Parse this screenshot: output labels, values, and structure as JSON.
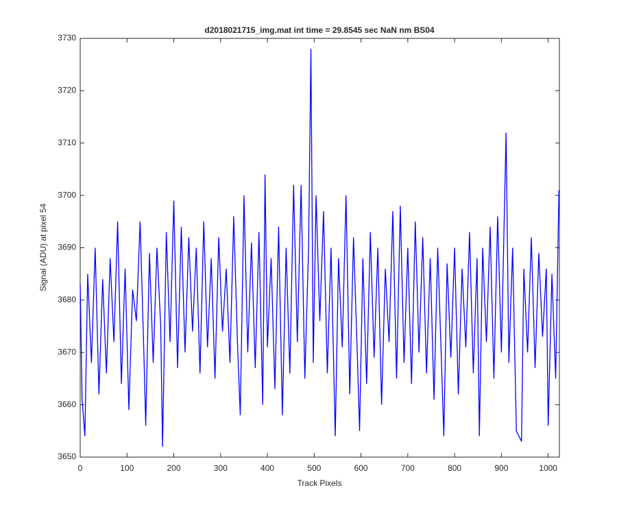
{
  "chart_data": {
    "type": "line",
    "title": "d2018021715_img.mat int time = 29.8545 sec  NaN nm BS04",
    "x_label": "Track Pixels",
    "y_label": "Signal (ADU) at pixel 54",
    "x": [
      0,
      4,
      10,
      16,
      24,
      32,
      40,
      48,
      56,
      64,
      72,
      80,
      88,
      96,
      104,
      112,
      120,
      128,
      136,
      140,
      148,
      156,
      164,
      172,
      176,
      184,
      192,
      200,
      208,
      216,
      224,
      232,
      240,
      248,
      256,
      264,
      272,
      280,
      288,
      296,
      304,
      312,
      320,
      328,
      336,
      342,
      350,
      358,
      366,
      374,
      382,
      390,
      395,
      400,
      408,
      416,
      424,
      432,
      440,
      448,
      456,
      464,
      472,
      480,
      488,
      493,
      498,
      504,
      512,
      520,
      528,
      536,
      545,
      552,
      560,
      568,
      576,
      584,
      592,
      597,
      604,
      612,
      620,
      628,
      636,
      644,
      652,
      660,
      668,
      676,
      684,
      692,
      700,
      708,
      716,
      724,
      732,
      740,
      748,
      756,
      764,
      772,
      777,
      784,
      792,
      800,
      808,
      816,
      824,
      832,
      840,
      848,
      853,
      860,
      868,
      876,
      884,
      892,
      900,
      910,
      916,
      924,
      932,
      943,
      948,
      956,
      964,
      972,
      980,
      988,
      996,
      1000,
      1008,
      1016,
      1023
    ],
    "series": [
      {
        "name": "signal",
        "color": "#0000ff",
        "values": [
          3683,
          3661,
          3654,
          3685,
          3668,
          3690,
          3662,
          3684,
          3666,
          3688,
          3672,
          3695,
          3664,
          3686,
          3659,
          3682,
          3676,
          3695,
          3670,
          3656,
          3689,
          3668,
          3690,
          3675,
          3652,
          3693,
          3672,
          3699,
          3667,
          3694,
          3670,
          3692,
          3674,
          3690,
          3666,
          3695,
          3671,
          3688,
          3665,
          3692,
          3674,
          3686,
          3668,
          3696,
          3672,
          3658,
          3700,
          3670,
          3691,
          3667,
          3693,
          3660,
          3704,
          3671,
          3688,
          3663,
          3694,
          3658,
          3690,
          3666,
          3702,
          3672,
          3702,
          3665,
          3690,
          3728,
          3668,
          3700,
          3676,
          3697,
          3666,
          3690,
          3654,
          3688,
          3671,
          3700,
          3662,
          3692,
          3670,
          3655,
          3688,
          3664,
          3693,
          3669,
          3690,
          3660,
          3686,
          3672,
          3697,
          3665,
          3698,
          3668,
          3690,
          3664,
          3695,
          3670,
          3692,
          3666,
          3688,
          3661,
          3690,
          3668,
          3654,
          3687,
          3669,
          3690,
          3662,
          3686,
          3671,
          3693,
          3666,
          3688,
          3654,
          3690,
          3672,
          3694,
          3665,
          3696,
          3670,
          3712,
          3668,
          3690,
          3655,
          3653,
          3686,
          3670,
          3692,
          3667,
          3689,
          3673,
          3686,
          3656,
          3685,
          3665,
          3701
        ]
      }
    ],
    "xlim": [
      0,
      1024
    ],
    "ylim": [
      3650,
      3730
    ],
    "xticks": [
      0,
      100,
      200,
      300,
      400,
      500,
      600,
      700,
      800,
      900,
      1000
    ],
    "yticks": [
      3650,
      3660,
      3670,
      3680,
      3690,
      3700,
      3710,
      3720,
      3730
    ],
    "grid": false
  }
}
